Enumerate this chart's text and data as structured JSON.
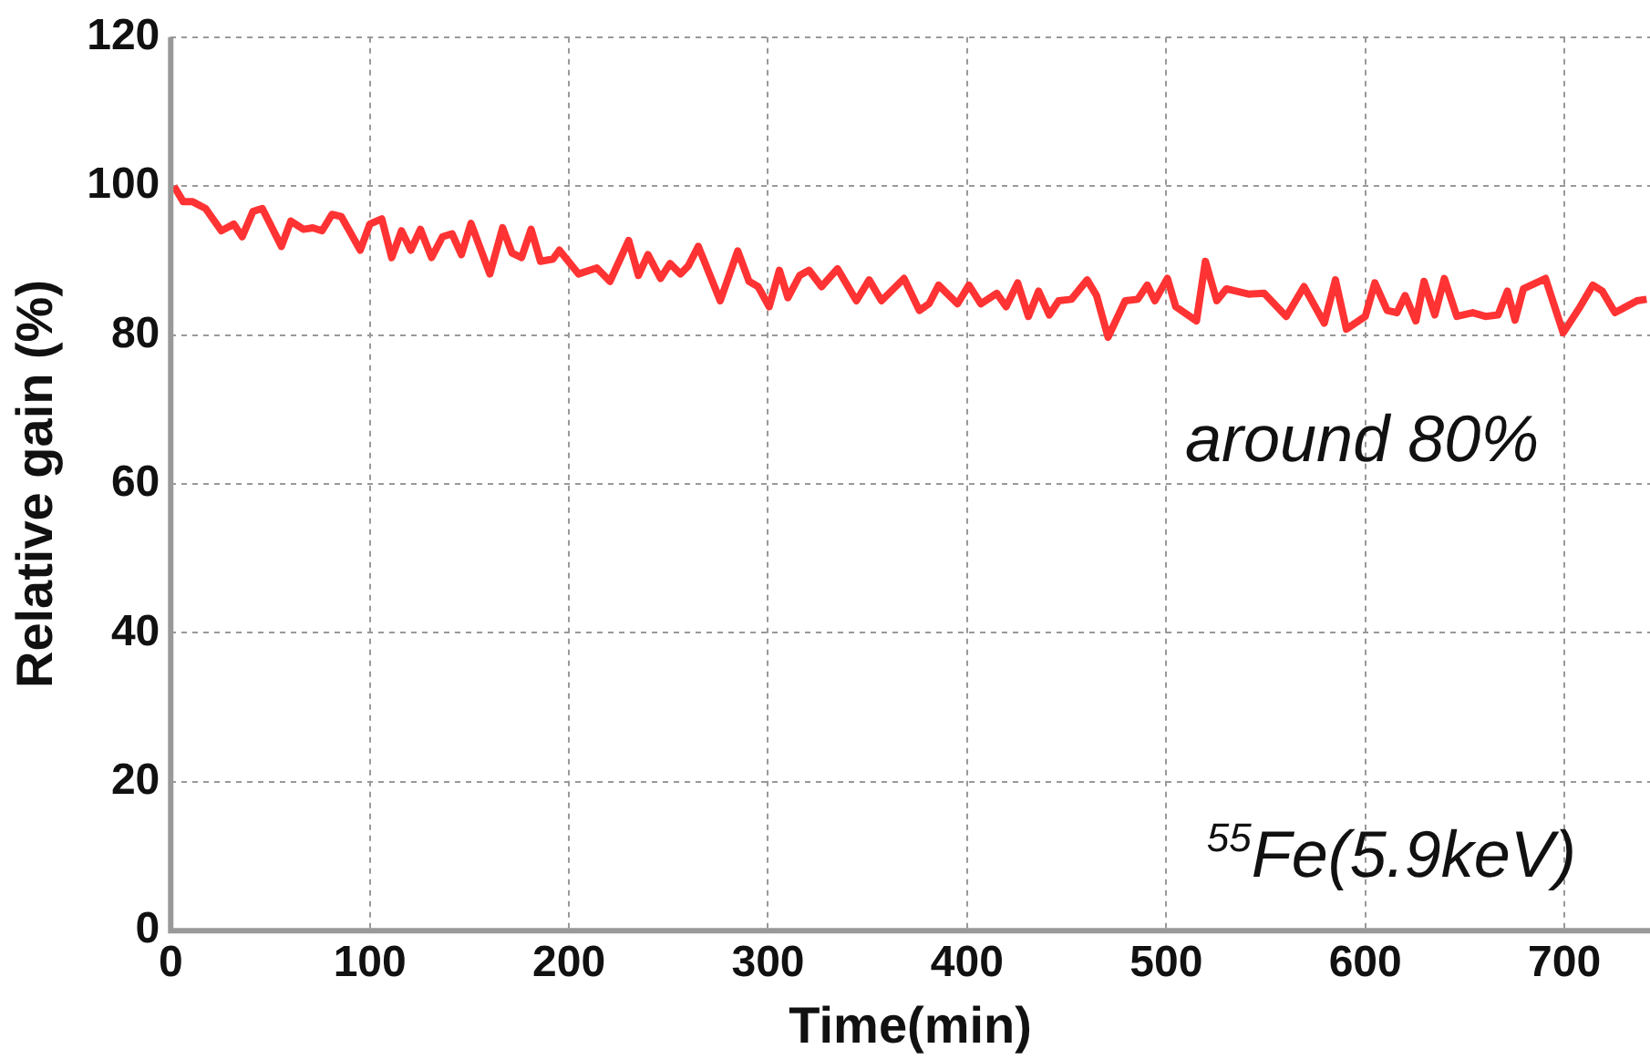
{
  "chart_data": {
    "type": "line",
    "xlabel": "Time(min)",
    "ylabel": "Relative gain (%)",
    "annotations": [
      "around 80%",
      "$^{55}$Fe(5.9keV)"
    ],
    "xlim": [
      0,
      743
    ],
    "xticks": [
      0,
      100,
      200,
      300,
      400,
      500,
      600,
      700
    ],
    "ylim": [
      0,
      120
    ],
    "yticks": [
      0,
      20,
      40,
      60,
      80,
      100,
      120
    ],
    "grid": true,
    "series": [
      {
        "color": "#ff3333",
        "x": [
          1.6,
          6.3,
          11,
          17.5,
          25.4,
          31.7,
          35.9,
          41.3,
          46,
          55.6,
          60.3,
          66.7,
          71.4,
          76,
          81,
          85.7,
          95.2,
          100,
          106,
          111,
          115.9,
          120.6,
          125.4,
          131,
          136.5,
          141.3,
          146,
          150.8,
          160.3,
          166.7,
          171.4,
          176.2,
          181,
          185.7,
          192,
          195.2,
          204.8,
          214,
          220.6,
          230,
          234.9,
          239.7,
          246,
          250.8,
          256,
          260,
          265,
          276,
          284.8,
          290.5,
          295,
          300.6,
          305.7,
          310,
          315.9,
          320.6,
          326.9,
          334.9,
          344.4,
          350.8,
          357,
          368.3,
          376,
          380.9,
          385.7,
          395.2,
          400.9,
          406.9,
          414.9,
          419.6,
          425.4,
          430.8,
          435.9,
          441.3,
          446,
          452.4,
          460.3,
          465,
          470.8,
          479.4,
          485.7,
          490.5,
          494.3,
          500.6,
          504.8,
          515.2,
          519.7,
          525.4,
          530.2,
          541.3,
          549.2,
          560.3,
          569.2,
          579.4,
          585,
          590.5,
          600,
          604.8,
          611,
          615.9,
          620,
          625.4,
          629.5,
          634.9,
          639.7,
          646,
          654,
          660.3,
          666.7,
          671.4,
          675.2,
          679.4,
          690.5,
          699.4,
          707.9,
          714.3,
          719,
          725.4,
          736.5,
          741.3
        ],
        "values": [
          100,
          97.9,
          97.9,
          97,
          94,
          94.9,
          93.2,
          96.6,
          97,
          91.9,
          95.3,
          94.2,
          94.4,
          94,
          96.2,
          95.9,
          91.4,
          94.9,
          95.6,
          90.4,
          94,
          91.4,
          94.2,
          90.4,
          93.2,
          93.6,
          90.8,
          95,
          88.2,
          94.4,
          91,
          90.4,
          94.2,
          89.9,
          90.2,
          91.4,
          88.2,
          89,
          87.2,
          92.7,
          88,
          90.8,
          87.6,
          89.6,
          88.2,
          89.3,
          91.9,
          84.6,
          91.3,
          87.2,
          86.5,
          83.8,
          88.7,
          85,
          88,
          88.7,
          86.5,
          88.9,
          84.6,
          87.4,
          84.6,
          87.6,
          83.3,
          84.2,
          86.7,
          84.2,
          86.7,
          84.2,
          85.6,
          83.8,
          87,
          82.5,
          85.9,
          82.7,
          84.6,
          84.8,
          87.4,
          85.3,
          79.7,
          84.6,
          84.8,
          86.7,
          84.6,
          87.6,
          83.8,
          81.9,
          89.9,
          84.6,
          86.2,
          85.5,
          85.6,
          82.5,
          86.5,
          81.6,
          87.4,
          80.8,
          82.5,
          87,
          83.3,
          83,
          85.3,
          81.9,
          87.2,
          82.7,
          87.6,
          82.5,
          83,
          82.5,
          82.7,
          85.9,
          82,
          86.2,
          87.6,
          80.3,
          83.8,
          86.7,
          85.9,
          83,
          84.6,
          84.8
        ]
      }
    ]
  }
}
